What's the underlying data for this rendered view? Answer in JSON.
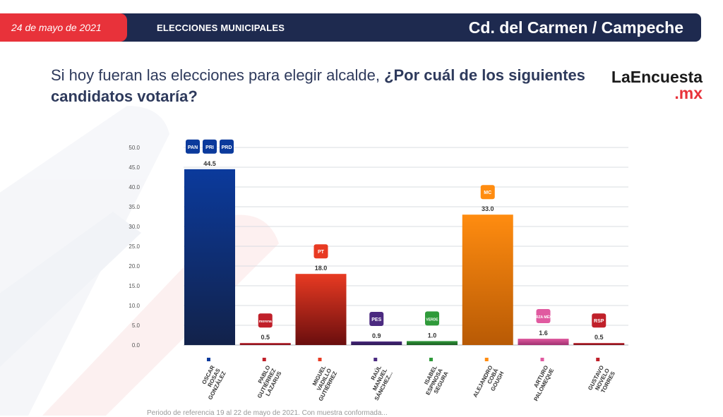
{
  "header": {
    "date": "24 de mayo de 2021",
    "section": "ELECCIONES MUNICIPALES",
    "location": "Cd. del Carmen / Campeche"
  },
  "question": {
    "part1": "Si hoy fueran las elecciones para elegir alcalde, ",
    "part2": "¿Por cuál de los siguientes candidatos votaría?"
  },
  "brand": {
    "name": "LaEncuesta",
    "suffix": ".mx"
  },
  "footnote": "Periodo de referencia 19 al 22 de mayo de 2021. Con muestra conformada...",
  "colors": {
    "accent_red": "#e8323a",
    "navy": "#1e2a4f"
  },
  "chart_data": {
    "type": "bar",
    "ylim": [
      0,
      50
    ],
    "yticks": [
      "0.0",
      "5.0",
      "10.0",
      "15.0",
      "20.0",
      "25.0",
      "30.0",
      "35.0",
      "40.0",
      "45.0",
      "50.0"
    ],
    "grid": true,
    "categories": [
      "OSCAR ROSAS GONZÁLEZ",
      "PABLO GUTIÉRREZ LAZARUS",
      "MIGUEL VADILLO GUTIÉRREZ",
      "RAÚL MANUEL SÁNCHEZ...",
      "ISABEL ESPINOSA SEGURA",
      "ALEJANDRO COBÁ GOUGH",
      "ARTURO PALOMEQUE",
      "GUSTAVO NOVELO TORRES"
    ],
    "values": [
      44.5,
      0.5,
      18.0,
      0.9,
      1.0,
      33.0,
      1.6,
      0.5
    ],
    "value_labels": [
      "44.5",
      "0.5",
      "18.0",
      "0.9",
      "1.0",
      "33.0",
      "1.6",
      "0.5"
    ],
    "bar_colors": [
      [
        "#0b3a9c",
        "#12224a"
      ],
      [
        "#c0202a",
        "#7a1018"
      ],
      [
        "#e83a22",
        "#6a0e0e"
      ],
      [
        "#4b2a80",
        "#2a1650"
      ],
      [
        "#2f9a3a",
        "#1a5a22"
      ],
      [
        "#ff8c10",
        "#b85a05"
      ],
      [
        "#e05aa0",
        "#a03070"
      ],
      [
        "#c0202a",
        "#7a1018"
      ]
    ],
    "party_logos": [
      [
        "PAN",
        "PRI",
        "PRD"
      ],
      [
        "morena"
      ],
      [
        "PT"
      ],
      [
        "PES"
      ],
      [
        "VERDE"
      ],
      [
        "MC"
      ],
      [
        "FUERZA MÉXICO"
      ],
      [
        "RSP"
      ]
    ]
  }
}
